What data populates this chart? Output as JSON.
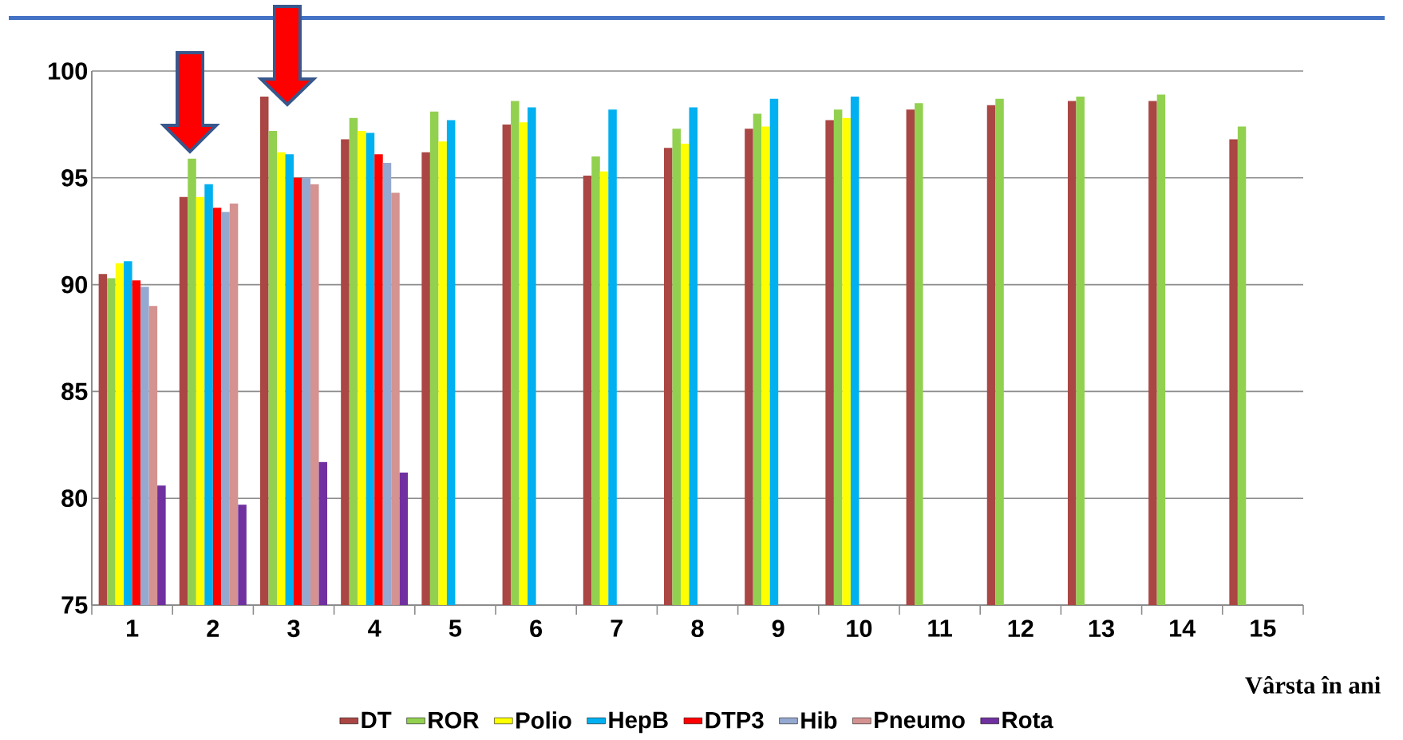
{
  "chart_data": {
    "type": "bar",
    "xlabel": "Vârsta în ani",
    "categories": [
      "1",
      "2",
      "3",
      "4",
      "5",
      "6",
      "7",
      "8",
      "9",
      "10",
      "11",
      "12",
      "13",
      "14",
      "15"
    ],
    "series": [
      {
        "name": "DT",
        "color": "#aa4643",
        "values": [
          90.5,
          94.1,
          98.8,
          96.8,
          96.2,
          97.5,
          95.1,
          96.4,
          97.3,
          97.7,
          98.2,
          98.4,
          98.6,
          98.6,
          96.8
        ]
      },
      {
        "name": "ROR",
        "color": "#92d050",
        "values": [
          90.3,
          95.9,
          97.2,
          97.8,
          98.1,
          98.6,
          96.0,
          97.3,
          98.0,
          98.2,
          98.5,
          98.7,
          98.8,
          98.9,
          97.4
        ]
      },
      {
        "name": "Polio",
        "color": "#ffff00",
        "values": [
          91.0,
          94.1,
          96.2,
          97.2,
          96.7,
          97.6,
          95.3,
          96.6,
          97.4,
          97.8,
          null,
          null,
          null,
          null,
          null
        ]
      },
      {
        "name": "HepB",
        "color": "#00b0f0",
        "values": [
          91.1,
          94.7,
          96.1,
          97.1,
          97.7,
          98.3,
          98.2,
          98.3,
          98.7,
          98.8,
          null,
          null,
          null,
          null,
          null
        ]
      },
      {
        "name": "DTP3",
        "color": "#ff0000",
        "values": [
          90.2,
          93.6,
          95.0,
          96.1,
          null,
          null,
          null,
          null,
          null,
          null,
          null,
          null,
          null,
          null,
          null
        ]
      },
      {
        "name": "Hib",
        "color": "#95a9d0",
        "values": [
          89.9,
          93.4,
          95.0,
          95.7,
          null,
          null,
          null,
          null,
          null,
          null,
          null,
          null,
          null,
          null,
          null
        ]
      },
      {
        "name": "Pneumo",
        "color": "#d49290",
        "values": [
          89.0,
          93.8,
          94.7,
          94.3,
          null,
          null,
          null,
          null,
          null,
          null,
          null,
          null,
          null,
          null,
          null
        ]
      },
      {
        "name": "Rota",
        "color": "#7030a0",
        "values": [
          80.6,
          79.7,
          81.7,
          81.2,
          null,
          null,
          null,
          null,
          null,
          null,
          null,
          null,
          null,
          null,
          null
        ]
      }
    ],
    "ylim": [
      75,
      100
    ],
    "yticks": [
      75,
      80,
      85,
      90,
      95,
      100
    ],
    "grid": "y",
    "legend": "bottom"
  }
}
